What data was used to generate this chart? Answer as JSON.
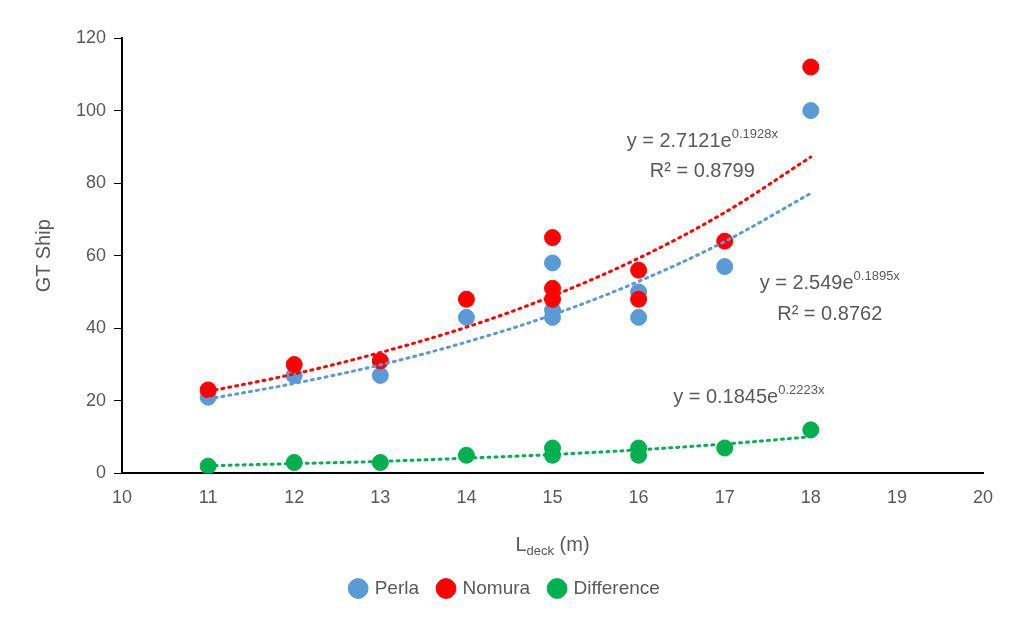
{
  "chart_data": {
    "type": "scatter",
    "xlabel": "L$_{deck}$ (m)",
    "ylabel": "GT Ship",
    "xlim": [
      10,
      20
    ],
    "xticks": [
      10,
      11,
      12,
      13,
      14,
      15,
      16,
      17,
      18,
      19,
      20
    ],
    "ylim": [
      0,
      120
    ],
    "yticks": [
      0,
      20,
      40,
      60,
      80,
      100,
      120
    ],
    "grid": false,
    "legend": "bottom",
    "marker": "circle",
    "series": [
      {
        "name": "Perla",
        "color": "#5b9bd5",
        "x": [
          11,
          12,
          13,
          14,
          15,
          15,
          15,
          16,
          16,
          17,
          18
        ],
        "values": [
          21,
          27,
          27,
          43,
          58,
          45,
          43,
          50,
          43,
          57,
          100
        ]
      },
      {
        "name": "Nomura",
        "color": "#ff0000",
        "x": [
          11,
          12,
          13,
          14,
          15,
          15,
          15,
          16,
          16,
          17,
          18
        ],
        "values": [
          23,
          30,
          31,
          48,
          65,
          51,
          48,
          56,
          48,
          64,
          112
        ]
      },
      {
        "name": "Difference",
        "color": "#00b050",
        "x": [
          11,
          12,
          13,
          14,
          15,
          15,
          16,
          16,
          17,
          18
        ],
        "values": [
          2,
          3,
          3,
          5,
          7,
          5,
          7,
          5,
          7,
          12
        ]
      },
      {
        "type": "line",
        "color": "#5b9bd5",
        "line_style": "dotted",
        "marker": "none",
        "x": [
          11,
          12,
          13,
          14,
          15,
          16,
          17,
          18
        ],
        "values": [
          20.5,
          24.8,
          29.9,
          36.2,
          43.7,
          52.9,
          63.9,
          77.2
        ]
      },
      {
        "type": "line",
        "color": "#ff0000",
        "line_style": "dotted",
        "marker": "none",
        "x": [
          11,
          12,
          13,
          14,
          15,
          16,
          17,
          18
        ],
        "values": [
          22.6,
          27.4,
          33.3,
          40.3,
          48.9,
          59.3,
          71.9,
          87.2
        ]
      },
      {
        "type": "line",
        "color": "#00b050",
        "line_style": "dotted",
        "marker": "none",
        "x": [
          11,
          12,
          13,
          14,
          15,
          16,
          17,
          18
        ],
        "values": [
          2.1,
          2.7,
          3.3,
          4.2,
          5.2,
          6.5,
          8.1,
          10.1
        ]
      }
    ],
    "annotations": [
      "y = 2.7121e$^{0.1928x}$",
      "R² = 0.8799",
      "y = 2.549e$^{0.1895x}$",
      "R² = 0.8762",
      "y = 0.1845e$^{0.2223x}$"
    ]
  }
}
